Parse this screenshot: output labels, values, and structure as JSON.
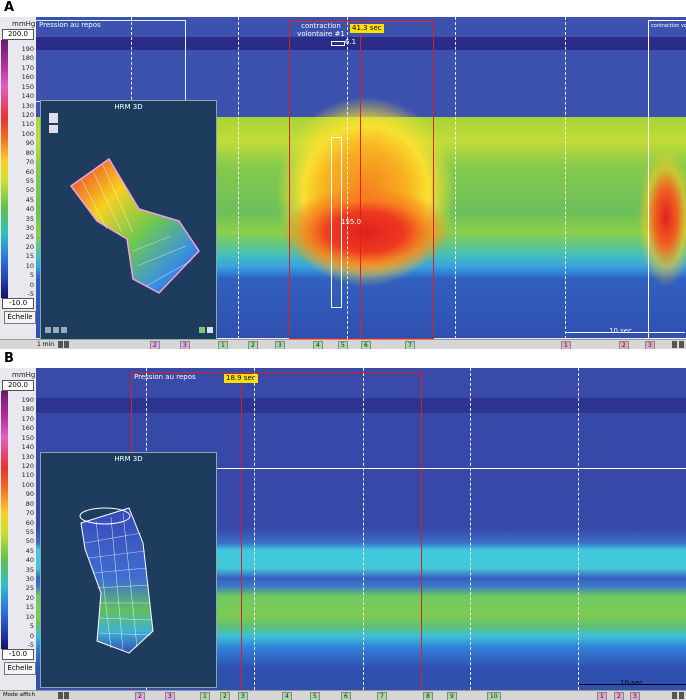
{
  "scale": {
    "unit": "mmHg",
    "max": "200.0",
    "min": "-10.0",
    "button": "Échelle",
    "ticks": [
      190,
      180,
      170,
      160,
      150,
      140,
      130,
      120,
      110,
      100,
      90,
      80,
      70,
      60,
      55,
      50,
      45,
      40,
      35,
      30,
      25,
      20,
      15,
      10,
      5,
      0,
      -5
    ]
  },
  "panels": [
    {
      "label": "A",
      "rest": "Pression au repos",
      "event": "contraction volontaire #1",
      "duration": "41.3 sec",
      "marker_value": "6.1",
      "probe_value": "155.0",
      "inset_title": "HRM 3D",
      "time_window": "1 min",
      "scale_bar": "10 sec",
      "side_label": "contraction volontai",
      "markers": [
        "2",
        "3",
        "1",
        "2",
        "3",
        "4",
        "5",
        "6",
        "7",
        "1",
        "2",
        "3"
      ]
    },
    {
      "label": "B",
      "rest": "Pression au repos",
      "duration": "18.9 sec",
      "inset_title": "HRM 3D",
      "scale_bar": "10 sec",
      "mode": "Mode affich",
      "markers": [
        "2",
        "3",
        "1",
        "2",
        "3",
        "4",
        "5",
        "6",
        "7",
        "8",
        "9",
        "10",
        "1",
        "2",
        "3"
      ]
    }
  ]
}
